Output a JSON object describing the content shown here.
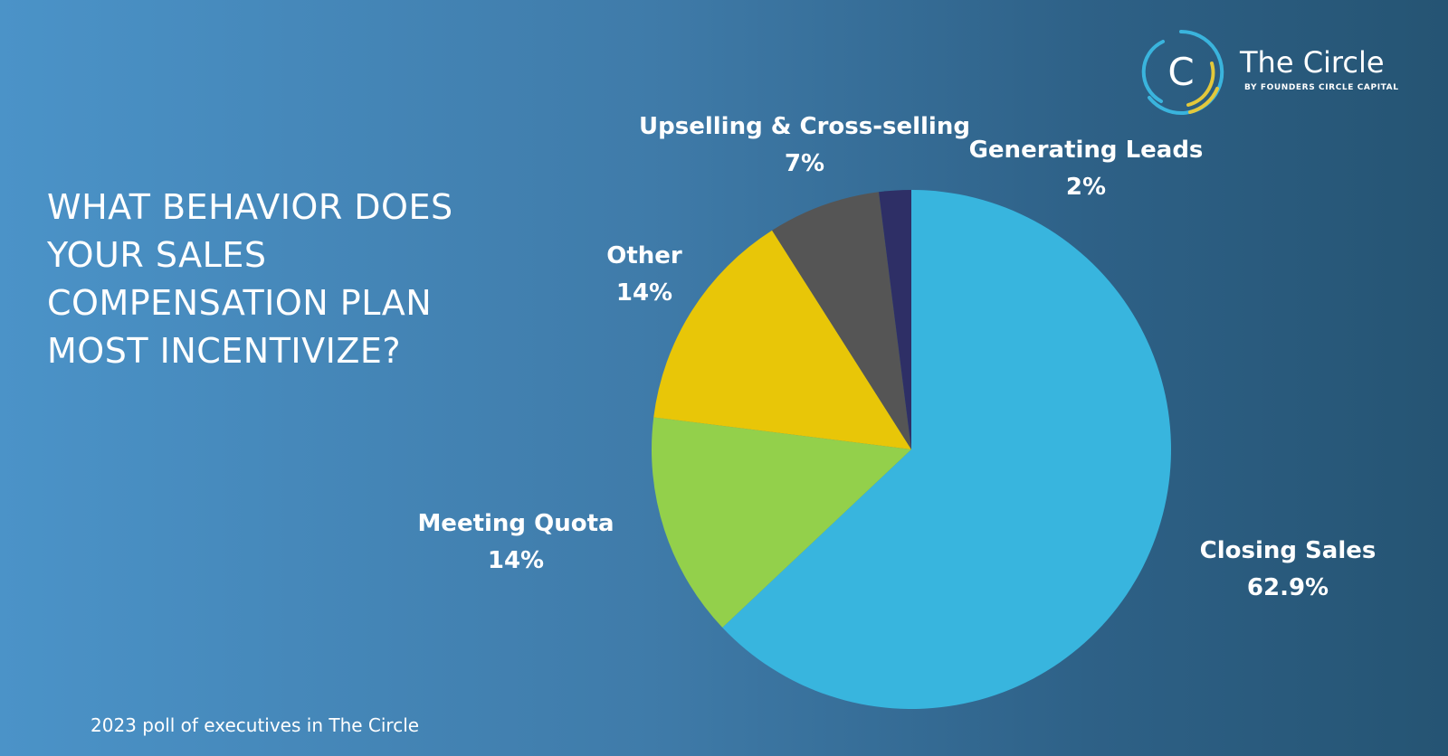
{
  "question": {
    "lines": [
      "WHAT BEHAVIOR DOES",
      "YOUR SALES",
      "COMPENSATION PLAN",
      "MOST INCENTIVIZE?"
    ]
  },
  "source_note": "2023 poll of executives in The Circle",
  "logo": {
    "name": "The Circle",
    "subtitle": "BY FOUNDERS CIRCLE CAPITAL",
    "mark_letter": "C",
    "colors": {
      "ring_blue": "#3ab4dd",
      "ring_yellow": "#e3c83b"
    }
  },
  "chart_data": {
    "type": "pie",
    "start_angle_deg": 0,
    "direction": "clockwise",
    "slices": [
      {
        "label": "Closing Sales",
        "value_label": "62.9%",
        "value": 62.9,
        "color": "#38b5de"
      },
      {
        "label": "Meeting Quota",
        "value_label": "14%",
        "value": 14,
        "color": "#93d04b"
      },
      {
        "label": "Other",
        "value_label": "14%",
        "value": 14,
        "color": "#e8c608"
      },
      {
        "label": "Upselling & Cross-selling",
        "value_label": "7%",
        "value": 7,
        "color": "#555555"
      },
      {
        "label": "Generating Leads",
        "value_label": "2%",
        "value": 2,
        "color": "#2e2f66"
      }
    ]
  }
}
